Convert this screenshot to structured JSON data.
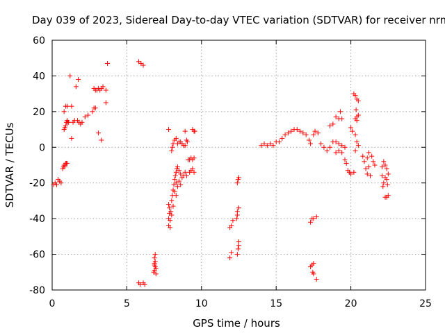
{
  "chart_data": {
    "type": "scatter",
    "title": "Day 039 of 2023, Sidereal Day-to-day VTEC variation (SDTVAR) for receiver nrmg",
    "xlabel": "GPS time / hours",
    "ylabel": "SDTVAR / TECUs",
    "xlim": [
      0,
      25
    ],
    "ylim": [
      -80,
      60
    ],
    "xticks": [
      "0",
      "5",
      "10",
      "15",
      "20",
      "25"
    ],
    "yticks": [
      "60",
      "40",
      "20",
      "0",
      "-20",
      "-40",
      "-60",
      "-80"
    ],
    "grid": true,
    "marker": "+",
    "color": "#ff0000",
    "series": [
      {
        "points": [
          [
            0.1,
            -21
          ],
          [
            0.2,
            -20
          ],
          [
            0.3,
            -21
          ],
          [
            0.4,
            -18
          ],
          [
            0.5,
            -19
          ],
          [
            0.6,
            -20
          ],
          [
            0.7,
            -12
          ],
          [
            0.75,
            -11
          ],
          [
            0.8,
            -10
          ],
          [
            0.85,
            -11
          ],
          [
            0.9,
            -9
          ],
          [
            0.95,
            -9
          ],
          [
            1.0,
            -9
          ],
          [
            0.8,
            10
          ],
          [
            0.85,
            11
          ],
          [
            0.9,
            12
          ],
          [
            0.95,
            14
          ],
          [
            1.0,
            15
          ],
          [
            1.05,
            14
          ],
          [
            1.1,
            14
          ],
          [
            0.8,
            20
          ],
          [
            0.9,
            23
          ],
          [
            1.0,
            23
          ],
          [
            1.3,
            23
          ],
          [
            1.2,
            40
          ],
          [
            1.4,
            14
          ],
          [
            1.3,
            5
          ],
          [
            1.5,
            15
          ],
          [
            1.6,
            34
          ],
          [
            1.7,
            15
          ],
          [
            1.75,
            38
          ],
          [
            1.8,
            14
          ],
          [
            1.9,
            13
          ],
          [
            2.0,
            14
          ],
          [
            2.2,
            17
          ],
          [
            2.4,
            18
          ],
          [
            2.7,
            20
          ],
          [
            2.8,
            22
          ],
          [
            2.9,
            22
          ],
          [
            2.8,
            33
          ],
          [
            2.9,
            32
          ],
          [
            3.0,
            32
          ],
          [
            3.1,
            33
          ],
          [
            3.2,
            32
          ],
          [
            3.3,
            33
          ],
          [
            3.4,
            34
          ],
          [
            3.1,
            8
          ],
          [
            3.3,
            4
          ],
          [
            3.7,
            47
          ],
          [
            3.6,
            32
          ],
          [
            3.6,
            25
          ],
          [
            5.8,
            48
          ],
          [
            5.95,
            47
          ],
          [
            6.1,
            46
          ],
          [
            5.8,
            -76
          ],
          [
            5.9,
            -77
          ],
          [
            6.1,
            -76
          ],
          [
            6.2,
            -77
          ],
          [
            6.8,
            -70
          ],
          [
            6.85,
            -69
          ],
          [
            6.85,
            -66
          ],
          [
            6.9,
            -64
          ],
          [
            6.85,
            -62
          ],
          [
            6.9,
            -60
          ],
          [
            6.95,
            -68
          ],
          [
            6.95,
            -71
          ],
          [
            6.9,
            -67
          ],
          [
            6.85,
            -65
          ],
          [
            7.8,
            -44
          ],
          [
            7.8,
            -40
          ],
          [
            7.85,
            -37
          ],
          [
            7.85,
            -34
          ],
          [
            7.8,
            -32
          ],
          [
            7.9,
            -41
          ],
          [
            7.9,
            -45
          ],
          [
            7.95,
            -36
          ],
          [
            8.0,
            -30
          ],
          [
            8.0,
            -38
          ],
          [
            8.05,
            -27
          ],
          [
            8.1,
            -24
          ],
          [
            8.1,
            -33
          ],
          [
            8.15,
            -21
          ],
          [
            8.2,
            -18
          ],
          [
            8.25,
            -16
          ],
          [
            8.3,
            -14
          ],
          [
            8.35,
            -12
          ],
          [
            8.4,
            -11
          ],
          [
            8.5,
            -13
          ],
          [
            8.6,
            -15
          ],
          [
            8.7,
            -17
          ],
          [
            8.8,
            -16
          ],
          [
            8.9,
            -14
          ],
          [
            9.0,
            -16
          ],
          [
            8.3,
            -20
          ],
          [
            8.4,
            -22
          ],
          [
            8.5,
            -19
          ],
          [
            8.6,
            -21
          ],
          [
            8.2,
            -25
          ],
          [
            8.3,
            -27
          ],
          [
            7.8,
            10
          ],
          [
            8.0,
            -2
          ],
          [
            8.05,
            0
          ],
          [
            8.1,
            2
          ],
          [
            8.2,
            4
          ],
          [
            8.3,
            5
          ],
          [
            8.4,
            2
          ],
          [
            8.5,
            3
          ],
          [
            8.6,
            3
          ],
          [
            8.7,
            2
          ],
          [
            8.8,
            1
          ],
          [
            8.9,
            1
          ],
          [
            8.9,
            9
          ],
          [
            9.0,
            4
          ],
          [
            9.05,
            3
          ],
          [
            9.1,
            -7
          ],
          [
            9.2,
            -7
          ],
          [
            9.3,
            -6
          ],
          [
            9.4,
            -7
          ],
          [
            9.5,
            -6
          ],
          [
            9.2,
            -14
          ],
          [
            9.3,
            -13
          ],
          [
            9.4,
            -12
          ],
          [
            9.5,
            -14
          ],
          [
            9.4,
            10
          ],
          [
            9.5,
            9
          ],
          [
            9.55,
            9
          ],
          [
            11.9,
            -62
          ],
          [
            12.0,
            -59
          ],
          [
            11.9,
            -45
          ],
          [
            12.0,
            -44
          ],
          [
            12.1,
            -41
          ],
          [
            12.4,
            -60
          ],
          [
            12.45,
            -57
          ],
          [
            12.5,
            -55
          ],
          [
            12.5,
            -53
          ],
          [
            12.35,
            -40
          ],
          [
            12.4,
            -38
          ],
          [
            12.4,
            -36
          ],
          [
            12.5,
            -34
          ],
          [
            12.4,
            -20
          ],
          [
            12.45,
            -18
          ],
          [
            12.5,
            -17
          ],
          [
            14.0,
            1
          ],
          [
            14.2,
            2
          ],
          [
            14.4,
            1
          ],
          [
            14.6,
            2
          ],
          [
            14.8,
            1
          ],
          [
            15.0,
            3
          ],
          [
            15.2,
            3
          ],
          [
            15.4,
            5
          ],
          [
            15.6,
            7
          ],
          [
            15.8,
            8
          ],
          [
            16.0,
            9
          ],
          [
            16.2,
            10
          ],
          [
            16.4,
            10
          ],
          [
            16.6,
            9
          ],
          [
            16.8,
            8
          ],
          [
            17.0,
            7
          ],
          [
            17.2,
            4
          ],
          [
            17.3,
            2
          ],
          [
            17.5,
            7
          ],
          [
            17.6,
            9
          ],
          [
            17.8,
            8
          ],
          [
            17.3,
            -67
          ],
          [
            17.4,
            -66
          ],
          [
            17.5,
            -65
          ],
          [
            17.45,
            -70
          ],
          [
            17.5,
            -71
          ],
          [
            17.7,
            -74
          ],
          [
            17.3,
            -42
          ],
          [
            17.4,
            -40
          ],
          [
            17.5,
            -40
          ],
          [
            17.7,
            -39
          ],
          [
            18.0,
            2
          ],
          [
            18.2,
            0
          ],
          [
            18.4,
            -2
          ],
          [
            18.6,
            0
          ],
          [
            18.8,
            3
          ],
          [
            19.0,
            3
          ],
          [
            19.2,
            2
          ],
          [
            19.4,
            1
          ],
          [
            19.2,
            -2
          ],
          [
            19.0,
            -3
          ],
          [
            19.4,
            -3
          ],
          [
            19.6,
            0
          ],
          [
            18.6,
            12
          ],
          [
            18.8,
            13
          ],
          [
            19.0,
            17
          ],
          [
            19.2,
            16
          ],
          [
            19.4,
            16
          ],
          [
            19.3,
            20
          ],
          [
            19.6,
            -7
          ],
          [
            19.7,
            -9
          ],
          [
            19.8,
            -13
          ],
          [
            19.9,
            -14
          ],
          [
            20.0,
            -15
          ],
          [
            20.2,
            -14
          ],
          [
            20.0,
            11
          ],
          [
            20.1,
            9
          ],
          [
            20.3,
            7
          ],
          [
            20.4,
            3
          ],
          [
            20.5,
            1
          ],
          [
            20.3,
            -2
          ],
          [
            20.2,
            30
          ],
          [
            20.3,
            29
          ],
          [
            20.4,
            27
          ],
          [
            20.5,
            26
          ],
          [
            20.35,
            21
          ],
          [
            20.4,
            17
          ],
          [
            20.5,
            18
          ],
          [
            20.4,
            15
          ],
          [
            20.3,
            16
          ],
          [
            20.8,
            -5
          ],
          [
            20.9,
            -8
          ],
          [
            21.0,
            -12
          ],
          [
            21.1,
            -15
          ],
          [
            21.2,
            -11
          ],
          [
            21.3,
            -16
          ],
          [
            21.1,
            -6
          ],
          [
            21.2,
            -3
          ],
          [
            21.4,
            -5
          ],
          [
            21.5,
            -8
          ],
          [
            21.6,
            -10
          ],
          [
            22.1,
            -11
          ],
          [
            22.1,
            -16
          ],
          [
            22.15,
            -22
          ],
          [
            22.2,
            -20
          ],
          [
            22.3,
            -17
          ],
          [
            22.4,
            -12
          ],
          [
            22.4,
            -18
          ],
          [
            22.5,
            -15
          ],
          [
            22.3,
            -28
          ],
          [
            22.4,
            -28
          ],
          [
            22.5,
            -27
          ],
          [
            22.2,
            -8
          ],
          [
            22.3,
            -10
          ],
          [
            22.45,
            -21
          ]
        ]
      }
    ]
  }
}
